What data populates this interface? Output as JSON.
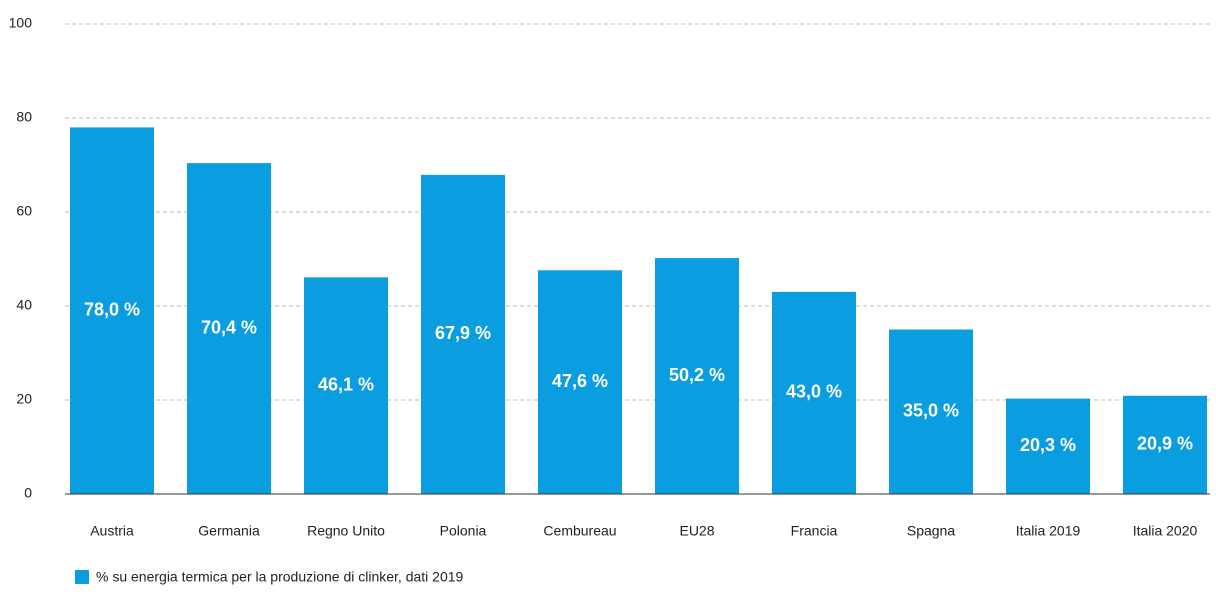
{
  "chart_data": {
    "type": "bar",
    "categories": [
      "Austria",
      "Germania",
      "Regno Unito",
      "Polonia",
      "Cembureau",
      "EU28",
      "Francia",
      "Spagna",
      "Italia 2019",
      "Italia 2020"
    ],
    "series": [
      {
        "name": "% su energia termica per la produzione di clinker, dati 2019",
        "color": "#0a9de0",
        "values": [
          78.0,
          70.4,
          46.1,
          67.9,
          47.6,
          50.2,
          43.0,
          35.0,
          20.3,
          20.9
        ],
        "value_labels": [
          "78,0 %",
          "70,4 %",
          "46,1 %",
          "67,9 %",
          "47,6 %",
          "50,2 %",
          "43,0 %",
          "35,0 %",
          "20,3 %",
          "20,9 %"
        ]
      }
    ],
    "ylim": [
      0,
      100
    ],
    "yticks": [
      0,
      20,
      40,
      60,
      80,
      100
    ],
    "grid": true,
    "legend": "bottom-left"
  }
}
